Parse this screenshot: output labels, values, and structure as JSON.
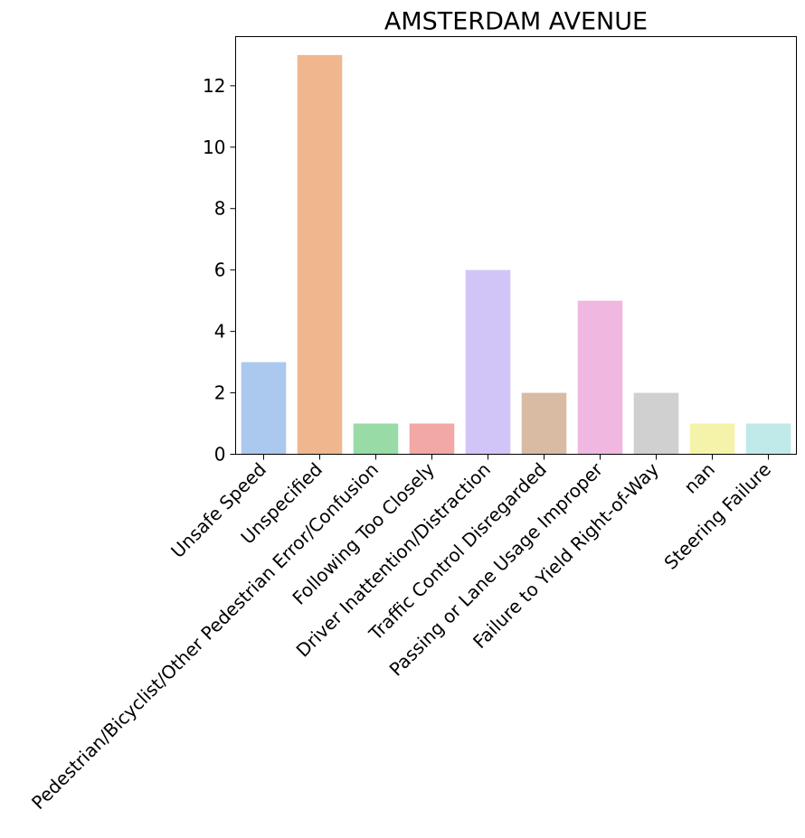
{
  "chart_data": {
    "type": "bar",
    "title": "AMSTERDAM AVENUE",
    "xlabel": "",
    "ylabel": "",
    "categories": [
      "Unsafe Speed",
      "Unspecified",
      "Pedestrian/Bicyclist/Other Pedestrian Error/Confusion",
      "Following Too Closely",
      "Driver Inattention/Distraction",
      "Traffic Control Disregarded",
      "Passing or Lane Usage Improper",
      "Failure to Yield Right-of-Way",
      "nan",
      "Steering Failure"
    ],
    "values": [
      3,
      13,
      1,
      1,
      6,
      2,
      5,
      2,
      1,
      1
    ],
    "colors": [
      "#abc9ee",
      "#f0b78f",
      "#98dba7",
      "#f2a9a6",
      "#d1c5f8",
      "#d8bba2",
      "#f0b8e0",
      "#d0d0d0",
      "#f5f3aa",
      "#c0eaea"
    ],
    "ylim": [
      0,
      13.6
    ],
    "yticks": [
      0,
      2,
      4,
      6,
      8,
      10,
      12
    ],
    "grid": false,
    "legend": "none"
  }
}
